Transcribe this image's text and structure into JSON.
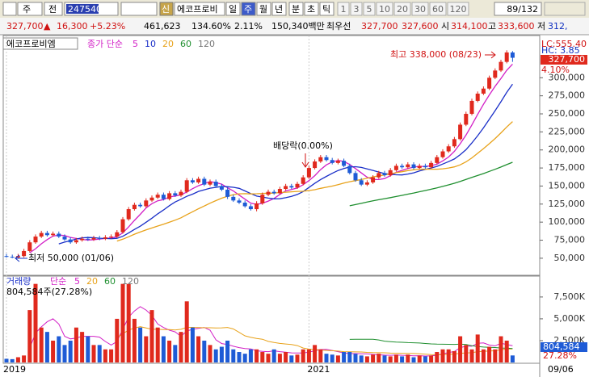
{
  "toolbar": {
    "market": "주",
    "mode": "전",
    "code": "247540",
    "new": "신",
    "name": "에코프로비",
    "periods": [
      "일",
      "주",
      "월",
      "년",
      "분",
      "초",
      "틱"
    ],
    "intervals": [
      "1",
      "3",
      "5",
      "10",
      "20",
      "30",
      "60",
      "120"
    ],
    "page": "89/132"
  },
  "quote": {
    "items": [
      "327,700",
      "▲",
      "16,300",
      "+5.23%",
      "461,623",
      "134.60%",
      "2.11%",
      "150,340백만",
      "최우선",
      "327,700",
      "327,600",
      "시",
      "314,100",
      "고",
      "333,600",
      "저",
      "312,"
    ]
  },
  "chart_data": [
    {
      "type": "candlestick",
      "name": "에코프로비엠",
      "legend": "종가 단순",
      "ma_periods": [
        5,
        10,
        20,
        60,
        120
      ],
      "ma_colors": [
        "#d21fc6",
        "#1a2fc8",
        "#e8a21a",
        "#1f8f2f",
        "#777777"
      ],
      "up_color": "#e0291d",
      "down_color": "#1e5bd6",
      "categories": [
        "2019",
        null,
        null,
        null,
        null,
        null,
        null,
        null,
        null,
        null,
        null,
        null,
        null,
        null,
        null,
        null,
        null,
        null,
        null,
        null,
        null,
        null,
        null,
        null,
        null,
        null,
        null,
        null,
        null,
        null,
        null,
        null,
        null,
        null,
        null,
        null,
        null,
        null,
        null,
        null,
        null,
        null,
        null,
        null,
        null,
        null,
        null,
        null,
        null,
        null,
        null,
        null,
        "2021",
        null,
        null,
        null,
        null,
        null,
        null,
        null,
        null,
        null,
        null,
        null,
        null,
        null,
        null,
        null,
        null,
        null,
        null,
        null,
        null,
        null,
        null,
        null,
        null,
        null,
        null,
        null,
        null,
        null,
        null,
        null,
        null,
        null,
        null,
        null
      ],
      "open": [
        53000,
        52000,
        51000,
        53000,
        60000,
        72000,
        80000,
        85000,
        82000,
        84000,
        80000,
        76000,
        72000,
        75000,
        77000,
        76000,
        78000,
        77000,
        79000,
        80000,
        86000,
        104000,
        118000,
        124000,
        122000,
        130000,
        134000,
        138000,
        132000,
        140000,
        137000,
        142000,
        158000,
        155000,
        160000,
        152000,
        156000,
        150000,
        145000,
        135000,
        130000,
        127000,
        122000,
        118000,
        126000,
        138000,
        142000,
        140000,
        146000,
        150000,
        148000,
        153000,
        162000,
        175000,
        184000,
        190000,
        186000,
        182000,
        185000,
        178000,
        168000,
        158000,
        152000,
        155000,
        162000,
        168000,
        165000,
        172000,
        178000,
        176000,
        180000,
        175000,
        178000,
        176000,
        182000,
        190000,
        198000,
        205000,
        215000,
        235000,
        250000,
        268000,
        278000,
        285000,
        300000,
        310000,
        322000,
        335000
      ],
      "high": [
        56000,
        55000,
        56000,
        63000,
        75000,
        83000,
        88000,
        88000,
        87000,
        87000,
        83000,
        79000,
        78000,
        80000,
        80000,
        81000,
        81000,
        82000,
        83000,
        89000,
        107000,
        121000,
        127000,
        127000,
        133000,
        137000,
        141000,
        141000,
        143000,
        143000,
        145000,
        161000,
        161000,
        163000,
        163000,
        159000,
        159000,
        153000,
        148000,
        138000,
        133000,
        130000,
        125000,
        129000,
        141000,
        145000,
        145000,
        149000,
        153000,
        153000,
        156000,
        165000,
        178000,
        187000,
        193000,
        193000,
        189000,
        188000,
        188000,
        181000,
        171000,
        161000,
        158000,
        165000,
        171000,
        171000,
        175000,
        181000,
        181000,
        183000,
        183000,
        181000,
        181000,
        185000,
        193000,
        201000,
        208000,
        218000,
        238000,
        253000,
        271000,
        281000,
        288000,
        303000,
        313000,
        325000,
        338000,
        337000
      ],
      "low": [
        51000,
        50000,
        50000,
        51000,
        58000,
        70000,
        78000,
        80000,
        80000,
        78000,
        74000,
        70000,
        70000,
        73000,
        74000,
        74000,
        75000,
        75000,
        77000,
        78000,
        84000,
        102000,
        116000,
        120000,
        120000,
        128000,
        132000,
        130000,
        130000,
        135000,
        135000,
        140000,
        153000,
        153000,
        150000,
        150000,
        148000,
        143000,
        132000,
        128000,
        125000,
        120000,
        116000,
        115000,
        124000,
        136000,
        138000,
        138000,
        144000,
        146000,
        146000,
        151000,
        160000,
        173000,
        182000,
        184000,
        180000,
        180000,
        176000,
        166000,
        156000,
        150000,
        150000,
        153000,
        160000,
        163000,
        163000,
        170000,
        174000,
        174000,
        173000,
        173000,
        174000,
        174000,
        180000,
        188000,
        196000,
        203000,
        213000,
        233000,
        248000,
        266000,
        276000,
        283000,
        298000,
        308000,
        320000,
        322000
      ],
      "close": [
        52000,
        51000,
        53000,
        60000,
        72000,
        80000,
        85000,
        82000,
        84000,
        80000,
        76000,
        72000,
        75000,
        77000,
        76000,
        78000,
        77000,
        79000,
        80000,
        86000,
        104000,
        118000,
        124000,
        122000,
        130000,
        134000,
        138000,
        132000,
        140000,
        137000,
        142000,
        158000,
        155000,
        160000,
        152000,
        156000,
        150000,
        145000,
        135000,
        130000,
        127000,
        122000,
        118000,
        126000,
        138000,
        142000,
        140000,
        146000,
        150000,
        148000,
        153000,
        162000,
        175000,
        184000,
        190000,
        186000,
        182000,
        185000,
        178000,
        168000,
        158000,
        152000,
        155000,
        162000,
        168000,
        165000,
        172000,
        178000,
        176000,
        180000,
        175000,
        178000,
        176000,
        182000,
        190000,
        198000,
        205000,
        215000,
        235000,
        250000,
        268000,
        278000,
        285000,
        300000,
        310000,
        322000,
        335000,
        327700
      ],
      "ylim": [
        27500,
        358500
      ],
      "yticks": [
        {
          "value": 50000,
          "label": "50,000"
        },
        {
          "value": 75000,
          "label": "75,000"
        },
        {
          "value": 100000,
          "label": "100,000"
        },
        {
          "value": 125000,
          "label": "125,000"
        },
        {
          "value": 150000,
          "label": "150,000"
        },
        {
          "value": 175000,
          "label": "175,000"
        },
        {
          "value": 200000,
          "label": "200,000"
        },
        {
          "value": 225000,
          "label": "225,000"
        },
        {
          "value": 250000,
          "label": "250,000"
        },
        {
          "value": 275000,
          "label": "275,000"
        },
        {
          "value": 300000,
          "label": "300,000"
        }
      ],
      "max_label": "최고 338,000 (08/23)",
      "min_label": "최저 50,000 (01/06)",
      "event_label": "배당락(0.00%)",
      "last_price_label": "327,700",
      "change_label": "4.10%",
      "lc_label": "LC:555.40",
      "hc_label": "HC: 3.85",
      "cursor_date": "09/06"
    },
    {
      "type": "bar",
      "title": "거래량",
      "legend": "단순",
      "ma_periods": [
        5,
        20,
        60,
        120
      ],
      "ma_colors": [
        "#d21fc6",
        "#e8a21a",
        "#1f8f2f",
        "#777777"
      ],
      "values": [
        420000,
        380000,
        600000,
        800000,
        6000000,
        9000000,
        4000000,
        3500000,
        2500000,
        3000000,
        2000000,
        2500000,
        4000000,
        3500000,
        3000000,
        2000000,
        2000000,
        1500000,
        1500000,
        5000000,
        9000000,
        9000000,
        5000000,
        4000000,
        3000000,
        6000000,
        4000000,
        3000000,
        2500000,
        2000000,
        3500000,
        7000000,
        4000000,
        3000000,
        2500000,
        2000000,
        1500000,
        1800000,
        2500000,
        1500000,
        1200000,
        1000000,
        1500000,
        1500000,
        1200000,
        1000000,
        1500000,
        1000000,
        1200000,
        800000,
        900000,
        1500000,
        1500000,
        2000000,
        1500000,
        1000000,
        900000,
        800000,
        1200000,
        1200000,
        1000000,
        800000,
        700000,
        900000,
        1000000,
        800000,
        700000,
        900000,
        700000,
        900000,
        600000,
        800000,
        700000,
        800000,
        1200000,
        1500000,
        1500000,
        1300000,
        3000000,
        2000000,
        1500000,
        3200000,
        1500000,
        1800000,
        1500000,
        3000000,
        2500000,
        804584
      ],
      "ylim": [
        0,
        9800000
      ],
      "yticks": [
        {
          "value": 2500000,
          "label": "2,500K"
        },
        {
          "value": 5000000,
          "label": "5,000K"
        },
        {
          "value": 7500000,
          "label": "7,500K"
        }
      ],
      "value_label": "804,584주(27.28%)",
      "last_label": "804,584",
      "ratio_label": "27.28%"
    }
  ]
}
